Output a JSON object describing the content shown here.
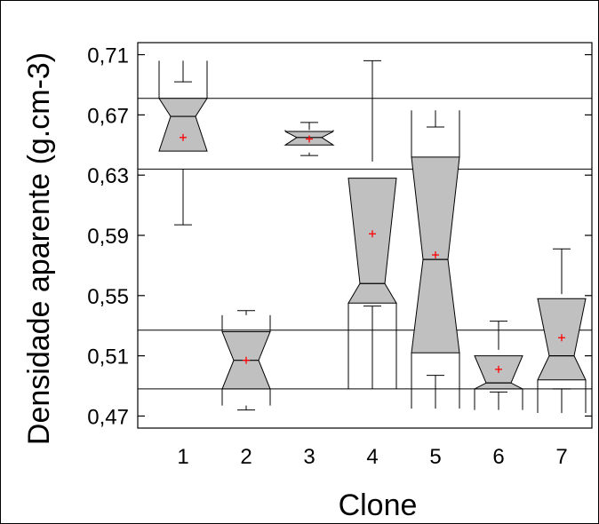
{
  "chart_data": {
    "type": "box",
    "xlabel": "Clone",
    "ylabel": "Densidade aparente (g.cm-3)",
    "categories": [
      "1",
      "2",
      "3",
      "4",
      "5",
      "6",
      "7"
    ],
    "ylim": [
      0.462,
      0.718
    ],
    "yticks": [
      0.47,
      0.51,
      0.55,
      0.59,
      0.63,
      0.67,
      0.71
    ],
    "ytick_labels": [
      "0,47",
      "0,51",
      "0,55",
      "0,59",
      "0,63",
      "0,67",
      "0,71"
    ],
    "notched": true,
    "box_fill": "#c0c0c0",
    "mean_marker_color": "#ff0000",
    "reference_lines": [
      0.681,
      0.634,
      0.527,
      0.488
    ],
    "boxes": [
      {
        "clone": "1",
        "whisker_low": 0.597,
        "q1": 0.634,
        "median": 0.669,
        "q3": 0.681,
        "whisker_high": 0.692,
        "mean": 0.655,
        "notch_low": 0.646,
        "notch_high": 0.706
      },
      {
        "clone": "2",
        "whisker_low": 0.474,
        "q1": 0.488,
        "median": 0.507,
        "q3": 0.526,
        "whisker_high": 0.54,
        "mean": 0.507,
        "notch_low": 0.477,
        "notch_high": 0.537
      },
      {
        "clone": "3",
        "whisker_low": 0.643,
        "q1": 0.645,
        "median": 0.655,
        "q3": 0.659,
        "whisker_high": 0.665,
        "mean": 0.654,
        "notch_low": 0.65,
        "notch_high": 0.66
      },
      {
        "clone": "4",
        "whisker_low": 0.543,
        "q1": 0.545,
        "median": 0.558,
        "q3": 0.639,
        "whisker_high": 0.706,
        "mean": 0.591,
        "notch_low": 0.488,
        "notch_high": 0.628
      },
      {
        "clone": "5",
        "whisker_low": 0.497,
        "q1": 0.512,
        "median": 0.574,
        "q3": 0.642,
        "whisker_high": 0.662,
        "mean": 0.577,
        "notch_low": 0.475,
        "notch_high": 0.673
      },
      {
        "clone": "6",
        "whisker_low": 0.486,
        "q1": 0.488,
        "median": 0.492,
        "q3": 0.514,
        "whisker_high": 0.533,
        "mean": 0.501,
        "notch_low": 0.474,
        "notch_high": 0.51
      },
      {
        "clone": "7",
        "whisker_low": 0.488,
        "q1": 0.494,
        "median": 0.51,
        "q3": 0.551,
        "whisker_high": 0.581,
        "mean": 0.522,
        "notch_low": 0.472,
        "notch_high": 0.548
      }
    ]
  }
}
